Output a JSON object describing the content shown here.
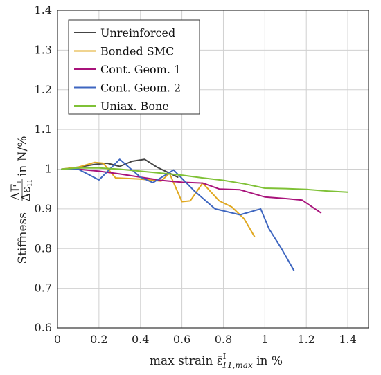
{
  "chart_data": {
    "type": "line",
    "title": "",
    "xlabel": "max strain ε̄",
    "xlabel_sup": "I",
    "xlabel_sub": "11,max",
    "xlabel_unit": " in %",
    "ylabel": "Stiffness",
    "ylabel_num": "ΔF",
    "ylabel_num_sub": "1",
    "ylabel_den": "Δε",
    "ylabel_den_sub": "11",
    "ylabel_unit": " in N/%",
    "xlim": [
      0,
      1.5
    ],
    "ylim": [
      0.6,
      1.4
    ],
    "xticks": [
      0,
      0.2,
      0.4,
      0.6,
      0.8,
      1,
      1.2,
      1.4
    ],
    "xtick_labels": [
      "0",
      "0.2",
      "0.4",
      "0.6",
      "0.8",
      "1",
      "1.2",
      "1.4"
    ],
    "yticks": [
      0.6,
      0.7,
      0.8,
      0.9,
      1,
      1.1,
      1.2,
      1.3,
      1.4
    ],
    "ytick_labels": [
      "0.6",
      "0.7",
      "0.8",
      "0.9",
      "1",
      "1.1",
      "1.2",
      "1.3",
      "1.4"
    ],
    "grid": true,
    "legend_position": "top-left",
    "series": [
      {
        "name": "Unreinforced",
        "color": "#444444",
        "x": [
          0.02,
          0.1,
          0.18,
          0.24,
          0.3,
          0.36,
          0.42,
          0.48,
          0.54,
          0.58
        ],
        "y": [
          1.0,
          1.005,
          1.012,
          1.015,
          1.007,
          1.02,
          1.025,
          1.005,
          0.99,
          0.98
        ]
      },
      {
        "name": "Bonded SMC",
        "color": "#e0a820",
        "x": [
          0.02,
          0.1,
          0.18,
          0.22,
          0.28,
          0.4,
          0.5,
          0.54,
          0.6,
          0.64,
          0.7,
          0.78,
          0.84,
          0.9,
          0.95
        ],
        "y": [
          1.0,
          1.005,
          1.017,
          1.015,
          0.978,
          0.975,
          0.97,
          0.99,
          0.918,
          0.92,
          0.965,
          0.92,
          0.905,
          0.875,
          0.83
        ]
      },
      {
        "name": "Cont. Geom. 1",
        "color": "#a8127a",
        "x": [
          0.02,
          0.1,
          0.2,
          0.3,
          0.4,
          0.5,
          0.6,
          0.7,
          0.78,
          0.88,
          1.0,
          1.1,
          1.18,
          1.27
        ],
        "y": [
          1.0,
          1.0,
          0.995,
          0.988,
          0.98,
          0.972,
          0.967,
          0.965,
          0.95,
          0.948,
          0.93,
          0.926,
          0.922,
          0.89
        ]
      },
      {
        "name": "Cont. Geom. 2",
        "color": "#3e66c0",
        "x": [
          0.02,
          0.1,
          0.2,
          0.3,
          0.4,
          0.46,
          0.56,
          0.66,
          0.76,
          0.88,
          0.98,
          1.02,
          1.08,
          1.14
        ],
        "y": [
          1.0,
          1.0,
          0.973,
          1.025,
          0.98,
          0.966,
          0.998,
          0.945,
          0.9,
          0.885,
          0.9,
          0.85,
          0.8,
          0.745
        ]
      },
      {
        "name": "Uniax. Bone",
        "color": "#7fc136",
        "x": [
          0.02,
          0.1,
          0.2,
          0.3,
          0.4,
          0.5,
          0.6,
          0.7,
          0.8,
          0.9,
          1.0,
          1.1,
          1.2,
          1.3,
          1.4
        ],
        "y": [
          1.0,
          1.003,
          1.003,
          1.0,
          0.995,
          0.99,
          0.985,
          0.978,
          0.972,
          0.963,
          0.952,
          0.951,
          0.949,
          0.945,
          0.942
        ]
      }
    ]
  }
}
